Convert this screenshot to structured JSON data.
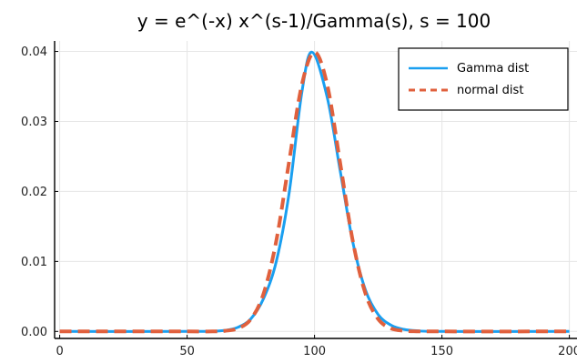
{
  "chart_data": {
    "type": "line",
    "title": "y = e^(-x) x^(s-1)/Gamma(s),  s = 100",
    "xlabel": "",
    "ylabel": "",
    "xlim": [
      -2,
      203
    ],
    "ylim": [
      -0.001,
      0.0415
    ],
    "xticks": [
      0,
      50,
      100,
      150,
      200
    ],
    "xtick_labels": [
      "0",
      "50",
      "100",
      "150",
      "200"
    ],
    "yticks": [
      0.0,
      0.01,
      0.02,
      0.03,
      0.04
    ],
    "ytick_labels": [
      "0.00",
      "0.01",
      "0.02",
      "0.03",
      "0.04"
    ],
    "grid": true,
    "legend_position": "top-right",
    "series": [
      {
        "name": "Gamma dist",
        "style": "solid",
        "color": "#1a9ff0",
        "x": [
          0,
          50,
          60,
          65,
          70,
          75,
          80,
          85,
          90,
          95,
          99,
          105,
          110,
          115,
          120,
          125,
          130,
          135,
          140,
          150,
          200
        ],
        "y": [
          0,
          0,
          3e-05,
          0.00015,
          0.0006,
          0.0018,
          0.0047,
          0.01,
          0.0197,
          0.0341,
          0.0399,
          0.0334,
          0.0231,
          0.0128,
          0.0059,
          0.0024,
          0.0009,
          0.0003,
          0.0001,
          0.0,
          0
        ]
      },
      {
        "name": "normal dist",
        "style": "dashed",
        "color": "#e0603d",
        "x": [
          0,
          50,
          60,
          65,
          70,
          75,
          80,
          85,
          90,
          95,
          100,
          105,
          110,
          115,
          120,
          125,
          130,
          135,
          140,
          150,
          200
        ],
        "y": [
          0,
          0,
          0.0,
          9e-05,
          0.00044,
          0.00175,
          0.0054,
          0.01295,
          0.0242,
          0.0352,
          0.0399,
          0.0352,
          0.0242,
          0.01295,
          0.0054,
          0.00175,
          0.00044,
          9e-05,
          1e-05,
          0.0,
          0
        ]
      }
    ]
  }
}
